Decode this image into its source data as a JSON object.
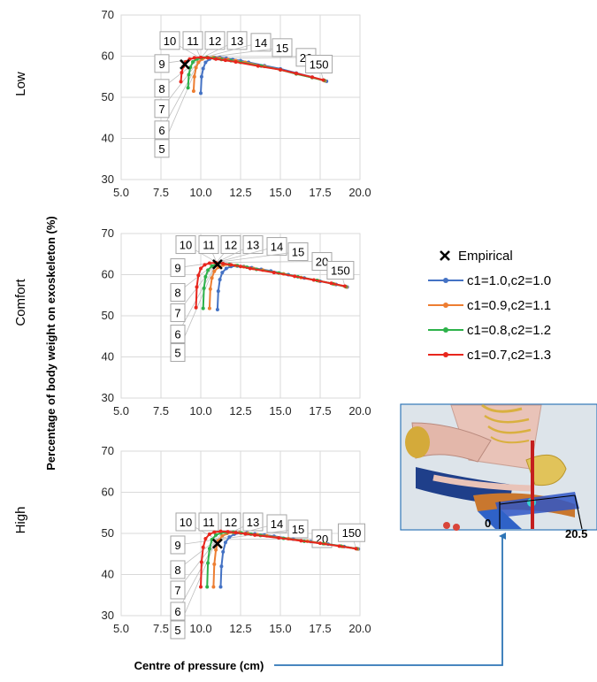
{
  "chart_data": {
    "type": "line",
    "xlabel": "Centre of pressure (cm)",
    "ylabel": "Percentage of body weight on exoskeleton (%)",
    "xlim": [
      5.0,
      20.0
    ],
    "ylim": [
      30,
      70
    ],
    "xticks": [
      "5.0",
      "7.5",
      "10.0",
      "12.5",
      "15.0",
      "17.5",
      "20.0"
    ],
    "yticks": [
      "30",
      "40",
      "50",
      "60",
      "70"
    ],
    "grid": true,
    "legend_position": "right",
    "legend": {
      "empirical": "Empirical",
      "series": [
        "c1=1.0,c2=1.0",
        "c1=0.9,c2=1.1",
        "c1=0.8,c2=1.2",
        "c1=0.7,c2=1.3"
      ]
    },
    "series_colors": [
      "#4472C4",
      "#ED7D31",
      "#2DB24A",
      "#E8261D"
    ],
    "callout_labels": [
      "5",
      "6",
      "7",
      "8",
      "9",
      "10",
      "11",
      "12",
      "13",
      "14",
      "15",
      "20",
      "150"
    ],
    "panels": [
      {
        "name": "Low",
        "empirical": {
          "x": 9.0,
          "y": 58.0
        },
        "callout_anchor": {
          "x": 10.0,
          "y": 59.5
        },
        "series": [
          {
            "name": "c1=1.0,c2=1.0",
            "x": [
              10.0,
              10.05,
              10.15,
              10.3,
              10.55,
              10.85,
              11.2,
              11.6,
              12.0,
              12.5,
              13.0,
              14.0,
              15.0,
              16.0,
              17.0,
              17.9
            ],
            "y": [
              51,
              55,
              57,
              58.5,
              59.3,
              59.7,
              59.7,
              59.5,
              59.2,
              58.9,
              58.5,
              57.7,
              56.9,
              55.9,
              54.9,
              53.9
            ]
          },
          {
            "name": "c1=0.9,c2=1.1",
            "x": [
              9.55,
              9.6,
              9.7,
              9.85,
              10.1,
              10.4,
              10.8,
              11.2,
              11.7,
              12.2,
              12.8,
              14.0,
              15.0,
              16.0,
              17.0,
              17.8
            ],
            "y": [
              51.5,
              55,
              57.2,
              58.5,
              59.3,
              59.7,
              59.7,
              59.5,
              59.2,
              58.9,
              58.5,
              57.5,
              56.7,
              55.7,
              54.8,
              54
            ]
          },
          {
            "name": "c1=0.8,c2=1.2",
            "x": [
              9.2,
              9.25,
              9.35,
              9.5,
              9.75,
              10.05,
              10.4,
              10.85,
              11.3,
              11.9,
              12.5,
              13.8,
              15.0,
              16.0,
              17.0,
              17.75
            ],
            "y": [
              52.3,
              55.5,
              57.3,
              58.6,
              59.3,
              59.6,
              59.7,
              59.5,
              59.2,
              58.9,
              58.5,
              57.6,
              56.7,
              55.7,
              54.8,
              54.1
            ]
          },
          {
            "name": "c1=0.7,c2=1.3",
            "x": [
              8.75,
              8.8,
              8.9,
              9.05,
              9.3,
              9.6,
              10.0,
              10.45,
              10.95,
              11.55,
              12.2,
              13.6,
              15.0,
              16.0,
              17.0,
              17.7
            ],
            "y": [
              53.8,
              56,
              57.5,
              58.6,
              59.3,
              59.6,
              59.7,
              59.6,
              59.3,
              59,
              58.6,
              57.6,
              56.7,
              55.8,
              54.9,
              54.2
            ]
          }
        ]
      },
      {
        "name": "Comfort",
        "empirical": {
          "x": 11.05,
          "y": 62.5
        },
        "callout_anchor": {
          "x": 11.0,
          "y": 63.0
        },
        "series": [
          {
            "name": "c1=1.0,c2=1.0",
            "x": [
              11.05,
              11.1,
              11.2,
              11.35,
              11.6,
              11.9,
              12.3,
              12.7,
              13.2,
              13.8,
              14.4,
              15.5,
              16.5,
              17.5,
              18.5,
              19.2
            ],
            "y": [
              51.5,
              56,
              58.8,
              60.5,
              61.5,
              62,
              62.1,
              62,
              61.7,
              61.3,
              60.9,
              60,
              59.2,
              58.4,
              57.6,
              57
            ]
          },
          {
            "name": "c1=0.9,c2=1.1",
            "x": [
              10.55,
              10.6,
              10.7,
              10.85,
              11.1,
              11.4,
              11.8,
              12.2,
              12.7,
              13.3,
              13.9,
              15.2,
              16.3,
              17.4,
              18.4,
              19.15
            ],
            "y": [
              51.8,
              56.5,
              59.2,
              60.8,
              61.8,
              62.3,
              62.4,
              62.2,
              61.9,
              61.5,
              61.1,
              60.2,
              59.3,
              58.5,
              57.7,
              57
            ]
          },
          {
            "name": "c1=0.8,c2=1.2",
            "x": [
              10.15,
              10.2,
              10.3,
              10.45,
              10.7,
              11.0,
              11.4,
              11.8,
              12.3,
              12.9,
              13.5,
              14.9,
              16.1,
              17.3,
              18.3,
              19.1
            ],
            "y": [
              51.8,
              56.7,
              59.5,
              61.1,
              62.1,
              62.6,
              62.7,
              62.5,
              62.2,
              61.8,
              61.3,
              60.4,
              59.5,
              58.6,
              57.8,
              57.1
            ]
          },
          {
            "name": "c1=0.7,c2=1.3",
            "x": [
              9.7,
              9.75,
              9.85,
              10.0,
              10.25,
              10.55,
              10.95,
              11.4,
              11.9,
              12.5,
              13.1,
              14.6,
              15.9,
              17.1,
              18.2,
              19.05
            ],
            "y": [
              52,
              57,
              59.8,
              61.5,
              62.4,
              62.8,
              62.9,
              62.7,
              62.4,
              62,
              61.5,
              60.5,
              59.6,
              58.7,
              57.9,
              57.2
            ]
          }
        ]
      },
      {
        "name": "High",
        "empirical": {
          "x": 11.05,
          "y": 47.5
        },
        "callout_anchor": {
          "x": 11.0,
          "y": 48.5
        },
        "series": [
          {
            "name": "c1=1.0,c2=1.0",
            "x": [
              11.25,
              11.3,
              11.4,
              11.55,
              11.8,
              12.1,
              12.5,
              12.9,
              13.4,
              14.0,
              14.6,
              15.8,
              16.9,
              18.0,
              19.0,
              19.9
            ],
            "y": [
              37,
              42,
              45.5,
              47.8,
              49.1,
              49.8,
              50.1,
              50.1,
              49.9,
              49.6,
              49.3,
              48.6,
              48,
              47.4,
              46.8,
              46.2
            ]
          },
          {
            "name": "c1=0.9,c2=1.1",
            "x": [
              10.8,
              10.85,
              10.95,
              11.1,
              11.35,
              11.65,
              12.05,
              12.45,
              12.95,
              13.55,
              14.15,
              15.5,
              16.7,
              17.8,
              18.9,
              19.85
            ],
            "y": [
              37,
              42.5,
              46,
              48.2,
              49.4,
              50,
              50.2,
              50.2,
              50,
              49.7,
              49.4,
              48.7,
              48.1,
              47.5,
              46.8,
              46.2
            ]
          },
          {
            "name": "c1=0.8,c2=1.2",
            "x": [
              10.4,
              10.45,
              10.55,
              10.7,
              10.95,
              11.25,
              11.65,
              12.05,
              12.55,
              13.15,
              13.75,
              15.2,
              16.5,
              17.7,
              18.8,
              19.8
            ],
            "y": [
              37,
              42.8,
              46.3,
              48.5,
              49.6,
              50.1,
              50.3,
              50.3,
              50.1,
              49.8,
              49.5,
              48.8,
              48.1,
              47.5,
              46.9,
              46.3
            ]
          },
          {
            "name": "c1=0.7,c2=1.3",
            "x": [
              10.0,
              10.05,
              10.15,
              10.3,
              10.55,
              10.85,
              11.25,
              11.7,
              12.2,
              12.8,
              13.4,
              14.9,
              16.3,
              17.5,
              18.7,
              19.75
            ],
            "y": [
              37,
              43,
              46.6,
              48.7,
              49.8,
              50.3,
              50.5,
              50.4,
              50.2,
              49.9,
              49.6,
              48.9,
              48.2,
              47.6,
              46.9,
              46.3
            ]
          }
        ]
      }
    ],
    "inset": {
      "scale_start": "0",
      "scale_end": "20.5"
    }
  }
}
